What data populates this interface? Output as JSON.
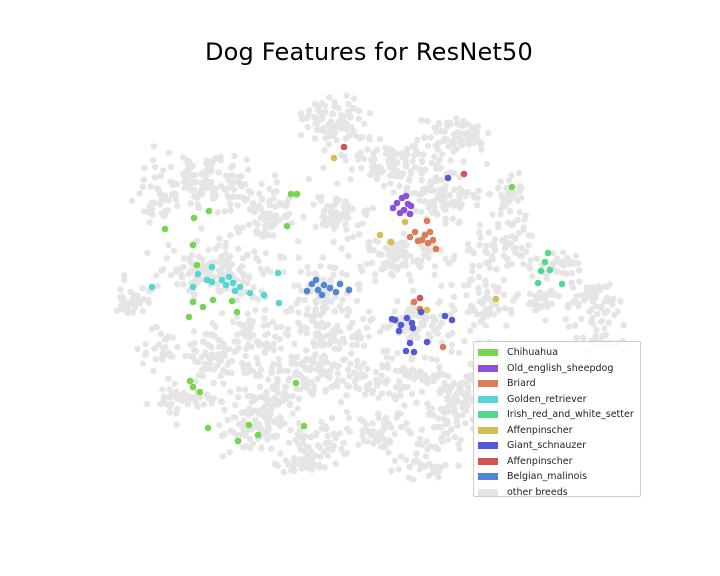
{
  "chart_data": {
    "type": "scatter",
    "title": "Dog Features for ResNet50",
    "xlabel": "",
    "ylabel": "",
    "axes_visible": false,
    "grid": false,
    "legend_position": "lower-right",
    "background_color": "#e5e5e5",
    "series": [
      {
        "name": "Chihuahua",
        "color": "#77d651",
        "points": [
          [
            194,
            218
          ],
          [
            209,
            211
          ],
          [
            193,
            245
          ],
          [
            165,
            229
          ],
          [
            197,
            265
          ],
          [
            193,
            302
          ],
          [
            203,
            307
          ],
          [
            237,
            312
          ],
          [
            232,
            301
          ],
          [
            297,
            194
          ],
          [
            291,
            194
          ],
          [
            287,
            226
          ],
          [
            213,
            300
          ],
          [
            189,
            317
          ],
          [
            190,
            381
          ],
          [
            200,
            392
          ],
          [
            193,
            387
          ],
          [
            208,
            428
          ],
          [
            249,
            425
          ],
          [
            258,
            435
          ],
          [
            238,
            441
          ],
          [
            304,
            426
          ],
          [
            296,
            383
          ],
          [
            512,
            187
          ]
        ]
      },
      {
        "name": "Old_english_sheepdog",
        "color": "#8a52d9",
        "points": [
          [
            397,
            203
          ],
          [
            402,
            198
          ],
          [
            408,
            204
          ],
          [
            404,
            210
          ],
          [
            411,
            206
          ],
          [
            400,
            213
          ],
          [
            410,
            214
          ],
          [
            393,
            208
          ],
          [
            406,
            196
          ]
        ]
      },
      {
        "name": "Briard",
        "color": "#db7c57",
        "points": [
          [
            427,
            221
          ],
          [
            415,
            232
          ],
          [
            422,
            240
          ],
          [
            428,
            243
          ],
          [
            433,
            240
          ],
          [
            425,
            235
          ],
          [
            436,
            249
          ],
          [
            410,
            237
          ],
          [
            418,
            241
          ],
          [
            430,
            232
          ],
          [
            414,
            302
          ],
          [
            420,
            309
          ],
          [
            443,
            347
          ]
        ]
      },
      {
        "name": "Golden_retriever",
        "color": "#54d6d4",
        "points": [
          [
            212,
            267
          ],
          [
            198,
            274
          ],
          [
            207,
            280
          ],
          [
            212,
            282
          ],
          [
            222,
            280
          ],
          [
            226,
            285
          ],
          [
            233,
            283
          ],
          [
            240,
            287
          ],
          [
            235,
            291
          ],
          [
            229,
            277
          ],
          [
            278,
            273
          ],
          [
            264,
            295
          ],
          [
            279,
            303
          ],
          [
            250,
            293
          ],
          [
            152,
            287
          ],
          [
            193,
            287
          ]
        ]
      },
      {
        "name": "Irish_red_and_white_setter",
        "color": "#52d88f",
        "points": [
          [
            548,
            253
          ],
          [
            545,
            262
          ],
          [
            550,
            270
          ],
          [
            541,
            271
          ],
          [
            538,
            283
          ],
          [
            562,
            284
          ]
        ]
      },
      {
        "name": "Affenpinscher",
        "color": "#d6be52",
        "points": [
          [
            391,
            242
          ],
          [
            380,
            235
          ],
          [
            405,
            222
          ],
          [
            496,
            299
          ],
          [
            427,
            310
          ],
          [
            334,
            158
          ]
        ]
      },
      {
        "name": "Giant_schnauzer",
        "color": "#5259d6",
        "points": [
          [
            395,
            320
          ],
          [
            401,
            325
          ],
          [
            407,
            318
          ],
          [
            412,
            323
          ],
          [
            399,
            331
          ],
          [
            413,
            328
          ],
          [
            410,
            343
          ],
          [
            406,
            351
          ],
          [
            414,
            352
          ],
          [
            427,
            342
          ],
          [
            445,
            316
          ],
          [
            452,
            320
          ],
          [
            448,
            178
          ],
          [
            421,
            312
          ],
          [
            392,
            319
          ]
        ]
      },
      {
        "name": "Affenpinscher",
        "color": "#d65252",
        "points": [
          [
            464,
            174
          ],
          [
            420,
            298
          ],
          [
            344,
            147
          ]
        ]
      },
      {
        "name": "Belgian_malinois",
        "color": "#5285d6",
        "points": [
          [
            312,
            284
          ],
          [
            318,
            290
          ],
          [
            324,
            285
          ],
          [
            330,
            288
          ],
          [
            336,
            292
          ],
          [
            322,
            295
          ],
          [
            316,
            280
          ],
          [
            340,
            284
          ],
          [
            349,
            290
          ],
          [
            307,
            291
          ]
        ]
      },
      {
        "name": "other breeds",
        "color": "#e5e5e5",
        "points": []
      }
    ]
  }
}
